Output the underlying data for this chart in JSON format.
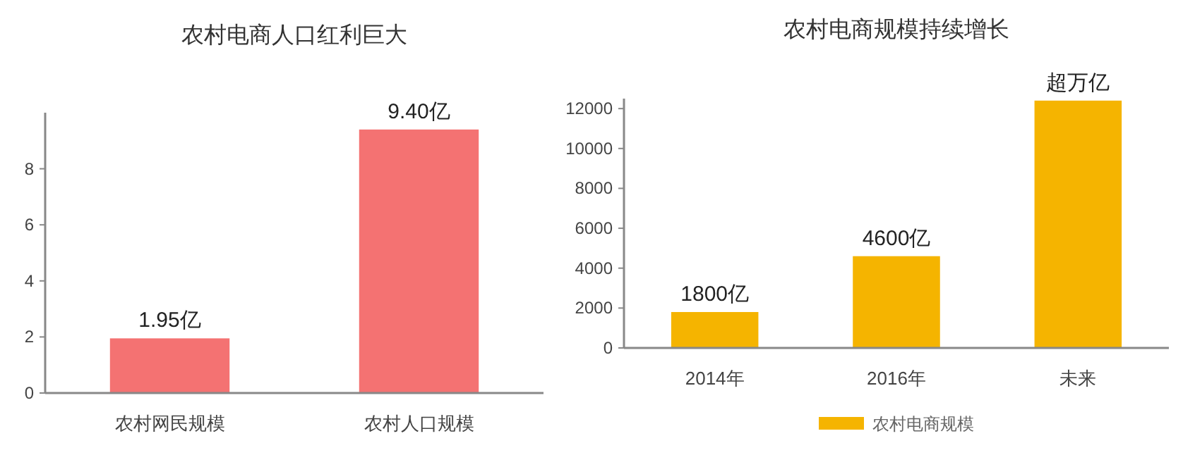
{
  "chart_data": [
    {
      "type": "bar",
      "title": "农村电商人口红利巨大",
      "categories": [
        "农村网民规模",
        "农村人口规模"
      ],
      "values": [
        1.95,
        9.4
      ],
      "color": "#f47272",
      "value_labels": [
        "1.95亿",
        "9.40亿"
      ],
      "ylim": [
        0,
        10
      ],
      "yticks": [
        0,
        2,
        4,
        6,
        8
      ]
    },
    {
      "type": "bar",
      "title": "农村电商规模持续增长",
      "categories": [
        "2014年",
        "2016年",
        "未来"
      ],
      "series": [
        {
          "name": "农村电商规模",
          "color": "#f5b400",
          "values": [
            1800,
            4600,
            12400
          ],
          "value_labels": [
            "1800亿",
            "4600亿",
            "超万亿"
          ]
        }
      ],
      "ylim": [
        0,
        12500
      ],
      "yticks": [
        0,
        2000,
        4000,
        6000,
        8000,
        10000,
        12000
      ],
      "legend": "bottom"
    }
  ]
}
